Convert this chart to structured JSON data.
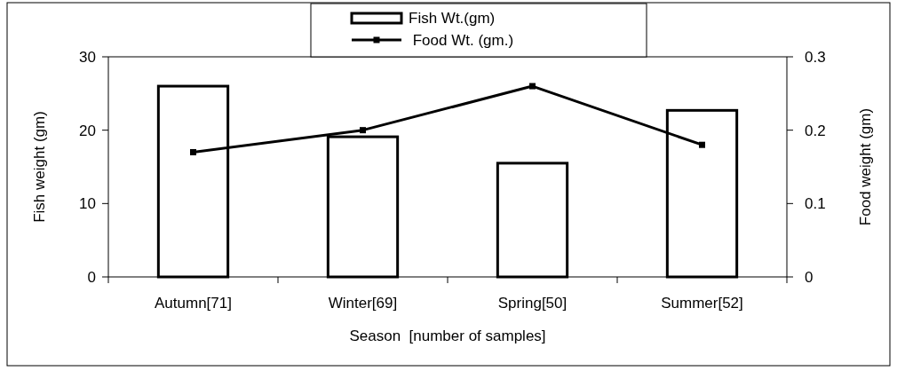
{
  "chart_data": {
    "type": "bar",
    "xlabel": "Season  [number of samples]",
    "ylabel": "Fish weight (gm)",
    "y2label": "Food weight (gm)",
    "categories": [
      "Autumn[71]",
      "Winter[69]",
      "Spring[50]",
      "Summer[52]"
    ],
    "series": [
      {
        "name": "Fish Wt.(gm)",
        "color": "#ffffff",
        "values": [
          26,
          19.1,
          15.5,
          22.7
        ]
      },
      {
        "name": " Food Wt. (gm.)",
        "type": "line",
        "axis": "y2",
        "color": "#000000",
        "marker": "square",
        "values": [
          0.17,
          0.2,
          0.26,
          0.18
        ]
      }
    ],
    "ylim": [
      0,
      30
    ],
    "yticks": [
      0,
      10,
      20,
      30
    ],
    "y2lim": [
      0,
      0.3
    ],
    "y2ticks": [
      0,
      0.1,
      0.2,
      0.3
    ],
    "grid": false,
    "legend": "top"
  }
}
